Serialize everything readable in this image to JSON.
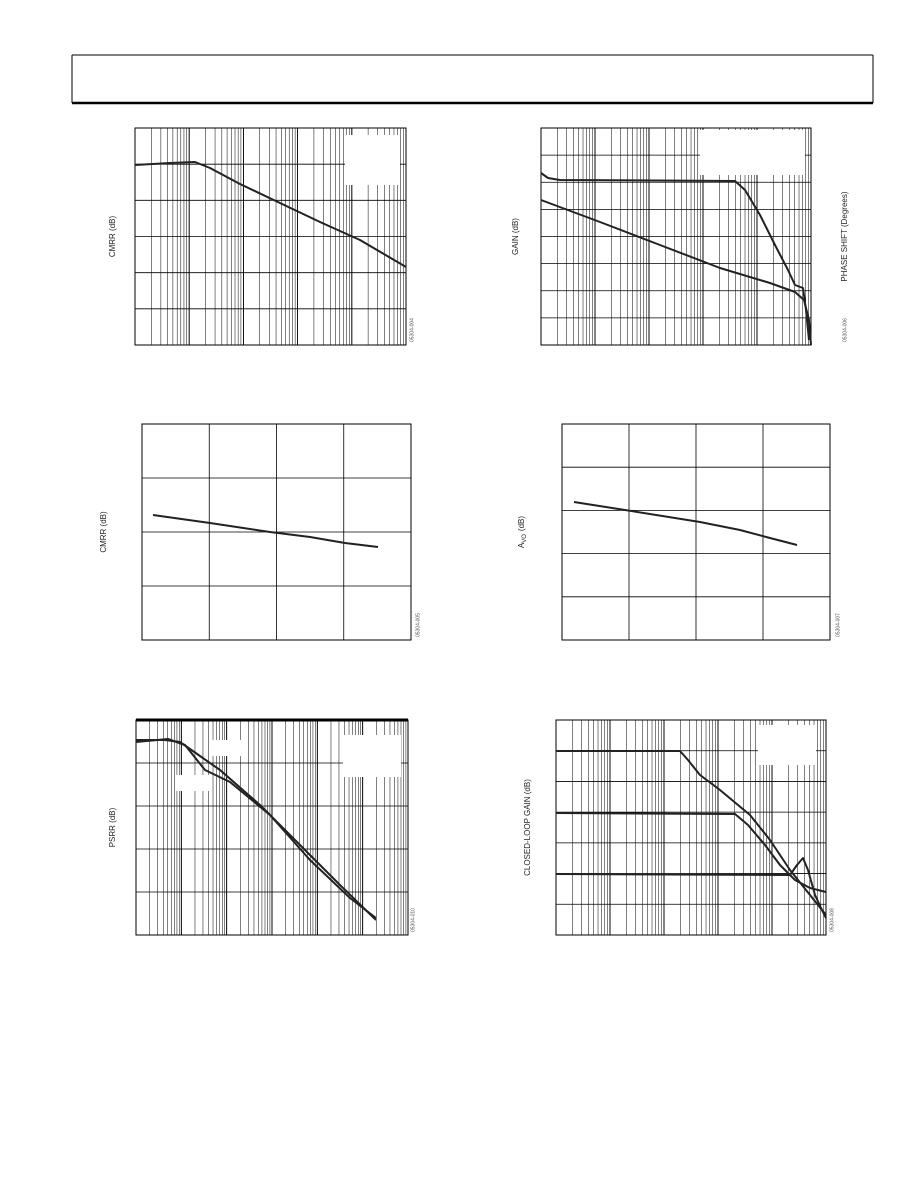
{
  "figures": [
    {
      "y_label": "CMRR (dB)",
      "id": "05304-004"
    },
    {
      "y_label": "GAIN (dB)",
      "y2_label": "PHASE SHIFT (Degrees)",
      "id": "05304-006"
    },
    {
      "y_label": "CMRR (dB)",
      "id": "05304-005"
    },
    {
      "y_label": "A",
      "y_label_sub": "VO",
      "y_label_suffix": "(dB)",
      "id": "05304-007"
    },
    {
      "y_label": "PSRR (dB)",
      "id": "05304-010"
    },
    {
      "y_label": "CLOSED-LOOP GAIN (dB)",
      "id": "05304-008"
    }
  ]
}
